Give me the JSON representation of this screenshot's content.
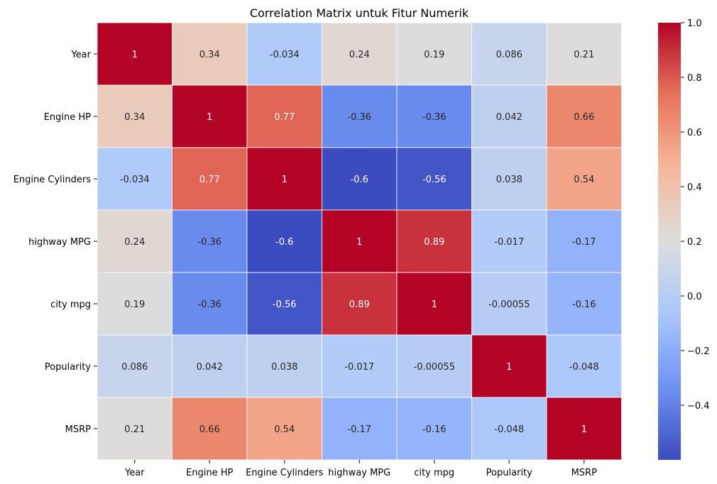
{
  "chart_data": {
    "type": "heatmap",
    "title": "Correlation Matrix untuk Fitur Numerik",
    "xlabel": "",
    "ylabel": "",
    "x_labels": [
      "Year",
      "Engine HP",
      "Engine Cylinders",
      "highway MPG",
      "city mpg",
      "Popularity",
      "MSRP"
    ],
    "y_labels": [
      "Year",
      "Engine HP",
      "Engine Cylinders",
      "highway MPG",
      "city mpg",
      "Popularity",
      "MSRP"
    ],
    "values": [
      [
        1,
        0.34,
        -0.034,
        0.24,
        0.19,
        0.086,
        0.21
      ],
      [
        0.34,
        1,
        0.77,
        -0.36,
        -0.36,
        0.042,
        0.66
      ],
      [
        -0.034,
        0.77,
        1,
        -0.6,
        -0.56,
        0.038,
        0.54
      ],
      [
        0.24,
        -0.36,
        -0.6,
        1,
        0.89,
        -0.017,
        -0.17
      ],
      [
        0.19,
        -0.36,
        -0.56,
        0.89,
        1,
        -0.00055,
        -0.16
      ],
      [
        0.086,
        0.042,
        0.038,
        -0.017,
        -0.00055,
        1,
        -0.048
      ],
      [
        0.21,
        0.66,
        0.54,
        -0.17,
        -0.16,
        -0.048,
        1
      ]
    ],
    "cell_labels": [
      [
        "1",
        "0.34",
        "-0.034",
        "0.24",
        "0.19",
        "0.086",
        "0.21"
      ],
      [
        "0.34",
        "1",
        "0.77",
        "-0.36",
        "-0.36",
        "0.042",
        "0.66"
      ],
      [
        "-0.034",
        "0.77",
        "1",
        "-0.6",
        "-0.56",
        "0.038",
        "0.54"
      ],
      [
        "0.24",
        "-0.36",
        "-0.6",
        "1",
        "0.89",
        "-0.017",
        "-0.17"
      ],
      [
        "0.19",
        "-0.36",
        "-0.56",
        "0.89",
        "1",
        "-0.00055",
        "-0.16"
      ],
      [
        "0.086",
        "0.042",
        "0.038",
        "-0.017",
        "-0.00055",
        "1",
        "-0.048"
      ],
      [
        "0.21",
        "0.66",
        "0.54",
        "-0.17",
        "-0.16",
        "-0.048",
        "1"
      ]
    ],
    "colormap": "coolwarm",
    "color_range": [
      -0.6,
      1.0
    ],
    "colorbar": {
      "ticks": [
        1.0,
        0.8,
        0.6,
        0.4,
        0.2,
        0.0,
        -0.2,
        -0.4
      ],
      "tick_labels": [
        "1.0",
        "0.8",
        "0.6",
        "0.4",
        "0.2",
        "0.0",
        "−0.2",
        "−0.4"
      ]
    },
    "colormap_stops": [
      "#3b4cc0",
      "#6f92f3",
      "#aac7fd",
      "#dcdddd",
      "#f7b89c",
      "#e7745b",
      "#b40426"
    ]
  }
}
